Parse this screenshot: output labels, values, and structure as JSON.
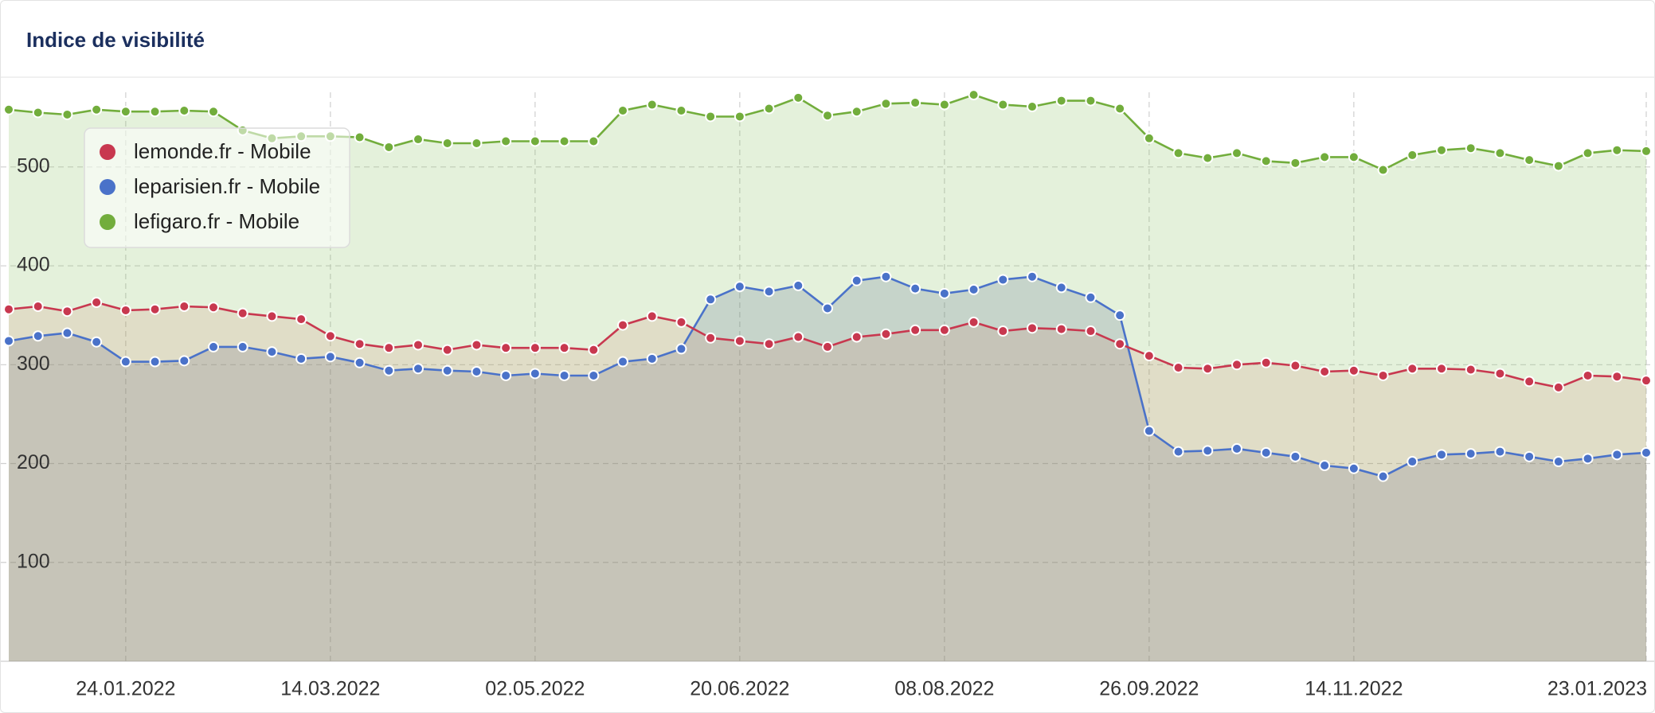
{
  "chart_data": {
    "type": "area-line",
    "title": "Indice de visibilité",
    "x": [
      "27.12.2021",
      "03.01.2022",
      "10.01.2022",
      "17.01.2022",
      "24.01.2022",
      "31.01.2022",
      "07.02.2022",
      "14.02.2022",
      "21.02.2022",
      "28.02.2022",
      "07.03.2022",
      "14.03.2022",
      "21.03.2022",
      "28.03.2022",
      "04.04.2022",
      "11.04.2022",
      "18.04.2022",
      "25.04.2022",
      "02.05.2022",
      "09.05.2022",
      "16.05.2022",
      "23.05.2022",
      "30.05.2022",
      "06.06.2022",
      "13.06.2022",
      "20.06.2022",
      "27.06.2022",
      "04.07.2022",
      "11.07.2022",
      "18.07.2022",
      "25.07.2022",
      "01.08.2022",
      "08.08.2022",
      "15.08.2022",
      "22.08.2022",
      "29.08.2022",
      "05.09.2022",
      "12.09.2022",
      "19.09.2022",
      "26.09.2022",
      "03.10.2022",
      "10.10.2022",
      "17.10.2022",
      "24.10.2022",
      "31.10.2022",
      "07.11.2022",
      "14.11.2022",
      "21.11.2022",
      "28.11.2022",
      "05.12.2022",
      "12.12.2022",
      "19.12.2022",
      "26.12.2022",
      "02.01.2023",
      "09.01.2023",
      "16.01.2023",
      "23.01.2023"
    ],
    "xlim": [
      "27.12.2021",
      "23.01.2023"
    ],
    "xticks": [
      "24.01.2022",
      "14.03.2022",
      "02.05.2022",
      "20.06.2022",
      "08.08.2022",
      "26.09.2022",
      "14.11.2022",
      "23.01.2023"
    ],
    "ylim": [
      0,
      590
    ],
    "yticks": [
      100,
      200,
      300,
      400,
      500
    ],
    "grid": true,
    "legend": "top-left",
    "series": [
      {
        "name": "lemonde.fr - Mobile",
        "color": "#c8384f",
        "fill": "rgba(200,90,70,0.13)",
        "values": [
          356,
          359,
          354,
          363,
          355,
          356,
          359,
          358,
          352,
          349,
          346,
          329,
          321,
          317,
          320,
          315,
          320,
          317,
          317,
          317,
          315,
          340,
          349,
          343,
          327,
          324,
          321,
          328,
          318,
          328,
          331,
          335,
          335,
          343,
          334,
          337,
          336,
          334,
          321,
          309,
          297,
          296,
          300,
          302,
          299,
          293,
          294,
          289,
          296,
          296,
          295,
          291,
          283,
          277,
          289,
          288,
          284
        ]
      },
      {
        "name": "leparisien.fr - Mobile",
        "color": "#4a72c9",
        "fill": "rgba(90,110,140,0.22)",
        "values": [
          324,
          329,
          332,
          323,
          303,
          303,
          304,
          318,
          318,
          313,
          306,
          308,
          302,
          294,
          296,
          294,
          293,
          289,
          291,
          289,
          289,
          303,
          306,
          316,
          366,
          379,
          374,
          380,
          357,
          385,
          389,
          377,
          372,
          376,
          386,
          389,
          378,
          368,
          350,
          233,
          212,
          213,
          215,
          211,
          207,
          198,
          195,
          187,
          202,
          209,
          210,
          212,
          207,
          202,
          205,
          209,
          211
        ]
      },
      {
        "name": "lefigaro.fr - Mobile",
        "color": "#72ad3c",
        "fill": "rgba(130,190,90,0.22)",
        "values": [
          558,
          555,
          553,
          558,
          556,
          556,
          557,
          556,
          537,
          529,
          531,
          531,
          530,
          520,
          528,
          524,
          524,
          526,
          526,
          526,
          526,
          557,
          563,
          557,
          551,
          551,
          559,
          570,
          552,
          556,
          564,
          565,
          563,
          573,
          563,
          561,
          567,
          567,
          559,
          529,
          514,
          509,
          514,
          506,
          504,
          510,
          510,
          497,
          512,
          517,
          519,
          514,
          507,
          501,
          514,
          517,
          516
        ]
      }
    ]
  }
}
